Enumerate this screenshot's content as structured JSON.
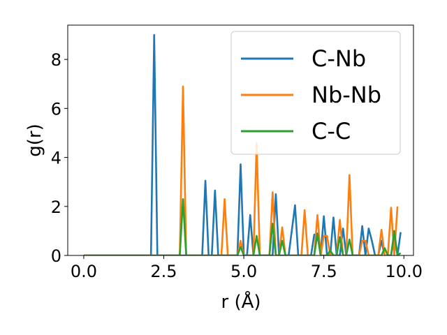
{
  "chart_data": {
    "type": "line",
    "title": "",
    "xlabel": "r (Å)",
    "ylabel": "g(r)",
    "xlim": [
      -0.5,
      10.3
    ],
    "ylim": [
      0,
      9.4
    ],
    "xticks": [
      0.0,
      2.5,
      5.0,
      7.5,
      10.0
    ],
    "xtick_labels": [
      "0.0",
      "2.5",
      "5.0",
      "7.5",
      "10.0"
    ],
    "yticks": [
      0,
      2,
      4,
      6,
      8
    ],
    "ytick_labels": [
      "0",
      "2",
      "4",
      "6",
      "8"
    ],
    "grid": false,
    "legend_position": "top-right",
    "series": [
      {
        "name": "C-Nb",
        "color": "#1f77b4",
        "points": [
          [
            0,
            0
          ],
          [
            2.1,
            0
          ],
          [
            2.2,
            9.0
          ],
          [
            2.3,
            0
          ],
          [
            3.7,
            0
          ],
          [
            3.8,
            3.05
          ],
          [
            3.9,
            0
          ],
          [
            4.0,
            0
          ],
          [
            4.1,
            2.65
          ],
          [
            4.2,
            0
          ],
          [
            4.8,
            0
          ],
          [
            4.9,
            3.72
          ],
          [
            5.0,
            0
          ],
          [
            5.1,
            0
          ],
          [
            5.2,
            1.65
          ],
          [
            5.3,
            0
          ],
          [
            5.9,
            0
          ],
          [
            6.0,
            2.5
          ],
          [
            6.1,
            0
          ],
          [
            6.4,
            0
          ],
          [
            6.6,
            2.05
          ],
          [
            6.7,
            0
          ],
          [
            7.1,
            0
          ],
          [
            7.2,
            0.85
          ],
          [
            7.3,
            0.85
          ],
          [
            7.4,
            0
          ],
          [
            7.5,
            1.6
          ],
          [
            7.6,
            0
          ],
          [
            7.7,
            0
          ],
          [
            7.8,
            1.55
          ],
          [
            7.9,
            0
          ],
          [
            8.0,
            0
          ],
          [
            8.1,
            1.1
          ],
          [
            8.2,
            0
          ],
          [
            8.6,
            0
          ],
          [
            8.7,
            1.2
          ],
          [
            8.8,
            0
          ],
          [
            8.9,
            1.1
          ],
          [
            9.0,
            0.6
          ],
          [
            9.1,
            0
          ],
          [
            9.2,
            0
          ],
          [
            9.3,
            0.6
          ],
          [
            9.4,
            0
          ],
          [
            9.5,
            0
          ],
          [
            9.6,
            0
          ],
          [
            9.7,
            0.85
          ],
          [
            9.8,
            0
          ],
          [
            9.9,
            0.95
          ]
        ]
      },
      {
        "name": "Nb-Nb",
        "color": "#ff7f0e",
        "points": [
          [
            0,
            0
          ],
          [
            3.0,
            0
          ],
          [
            3.1,
            6.9
          ],
          [
            3.2,
            0
          ],
          [
            4.3,
            0
          ],
          [
            4.4,
            2.3
          ],
          [
            4.5,
            0
          ],
          [
            4.8,
            0
          ],
          [
            4.9,
            0.6
          ],
          [
            5.0,
            0
          ],
          [
            5.3,
            0
          ],
          [
            5.4,
            4.6
          ],
          [
            5.5,
            0
          ],
          [
            5.8,
            0
          ],
          [
            5.9,
            2.58
          ],
          [
            6.0,
            0
          ],
          [
            6.1,
            0
          ],
          [
            6.2,
            1.15
          ],
          [
            6.3,
            0
          ],
          [
            6.8,
            0
          ],
          [
            6.9,
            1.85
          ],
          [
            7.0,
            0
          ],
          [
            7.2,
            0
          ],
          [
            7.3,
            1.65
          ],
          [
            7.4,
            0
          ],
          [
            7.5,
            0.8
          ],
          [
            7.6,
            0.8
          ],
          [
            7.7,
            0
          ],
          [
            7.9,
            0
          ],
          [
            8.0,
            1.45
          ],
          [
            8.1,
            0
          ],
          [
            8.2,
            0
          ],
          [
            8.3,
            3.28
          ],
          [
            8.4,
            0
          ],
          [
            8.6,
            0
          ],
          [
            8.7,
            0.6
          ],
          [
            8.8,
            0.6
          ],
          [
            8.9,
            0
          ],
          [
            9.2,
            0
          ],
          [
            9.3,
            1.05
          ],
          [
            9.4,
            0
          ],
          [
            9.5,
            0
          ],
          [
            9.6,
            1.95
          ],
          [
            9.7,
            0
          ],
          [
            9.8,
            2.0
          ]
        ]
      },
      {
        "name": "C-C",
        "color": "#2ca02c",
        "points": [
          [
            0,
            0
          ],
          [
            3.0,
            0
          ],
          [
            3.1,
            2.3
          ],
          [
            3.2,
            0
          ],
          [
            4.8,
            0
          ],
          [
            4.9,
            0.35
          ],
          [
            5.0,
            0
          ],
          [
            5.3,
            0
          ],
          [
            5.4,
            0.8
          ],
          [
            5.5,
            0
          ],
          [
            5.8,
            0
          ],
          [
            5.9,
            1.3
          ],
          [
            6.0,
            0
          ],
          [
            6.1,
            0
          ],
          [
            6.2,
            0.6
          ],
          [
            6.3,
            0
          ],
          [
            7.2,
            0
          ],
          [
            7.3,
            0.9
          ],
          [
            7.4,
            0
          ],
          [
            7.6,
            0
          ],
          [
            7.7,
            0.2
          ],
          [
            7.8,
            0
          ],
          [
            7.9,
            0
          ],
          [
            8.0,
            0.75
          ],
          [
            8.1,
            0
          ],
          [
            8.2,
            0
          ],
          [
            8.3,
            0.65
          ],
          [
            8.4,
            0
          ],
          [
            9.3,
            0
          ],
          [
            9.4,
            0.3
          ],
          [
            9.5,
            0
          ],
          [
            9.6,
            0
          ],
          [
            9.7,
            1.0
          ],
          [
            9.8,
            0
          ],
          [
            9.9,
            0.1
          ]
        ]
      }
    ]
  }
}
